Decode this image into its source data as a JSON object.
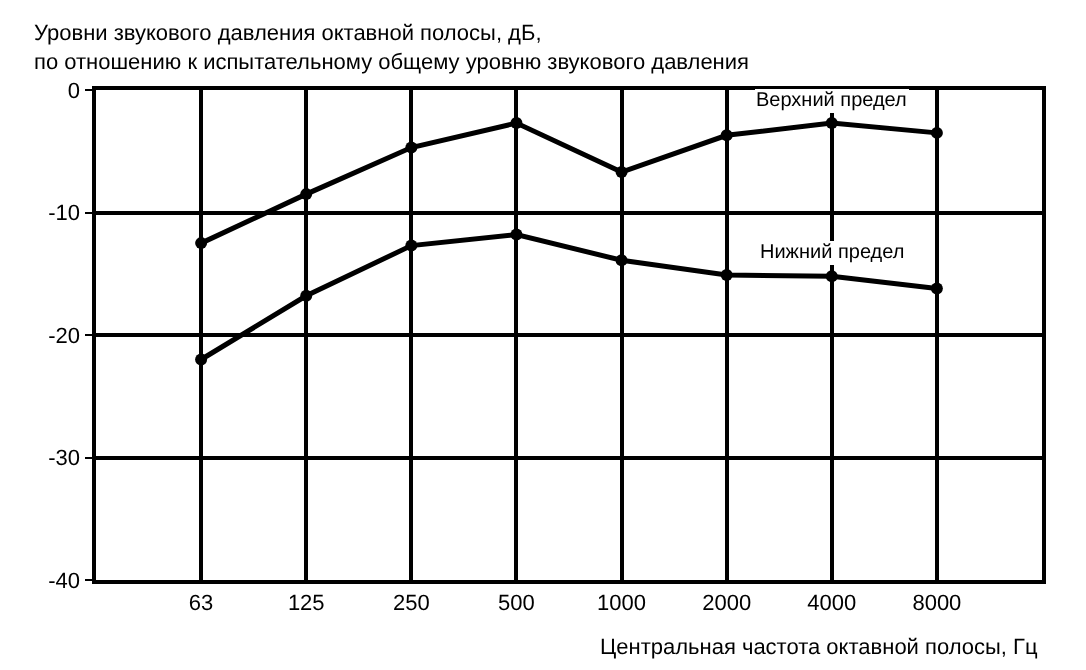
{
  "chart_data": {
    "type": "line",
    "ylabel": "Уровни звукового давления октавной полосы, дБ,\nпо отношению к испытательному общему уровню звукового давления",
    "xlabel": "Центральная частота октавной полосы, Гц",
    "categories": [
      "63",
      "125",
      "250",
      "500",
      "1000",
      "2000",
      "4000",
      "8000"
    ],
    "series": [
      {
        "name": "Верхний предел",
        "color": "#000000",
        "values": [
          -12.5,
          -8.5,
          -4.7,
          -2.7,
          -6.7,
          -3.7,
          -2.7,
          -3.5
        ]
      },
      {
        "name": "Нижний предел",
        "color": "#000000",
        "values": [
          -22.0,
          -16.8,
          -12.7,
          -11.8,
          -13.9,
          -15.1,
          -15.2,
          -16.2
        ]
      }
    ],
    "ylim": [
      -40,
      0
    ],
    "yticks": [
      -40,
      -30,
      -20,
      -10,
      0
    ],
    "grid": true,
    "marker": "circle",
    "line_style": "solid",
    "legend": false
  }
}
